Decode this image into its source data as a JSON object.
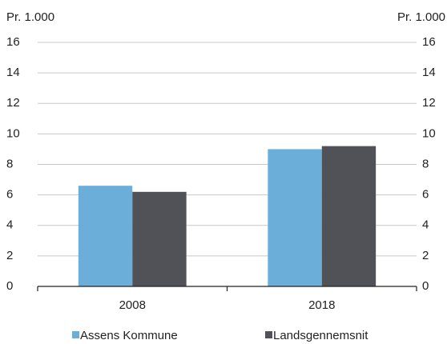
{
  "chart_data": {
    "type": "bar",
    "ylabel": "Pr. 1.000",
    "y2label": "Pr. 1.000",
    "categories": [
      "2008",
      "2018"
    ],
    "series": [
      {
        "name": "Assens Kommune",
        "color": "#6aaed9",
        "values": [
          6.6,
          9.0
        ]
      },
      {
        "name": "Landsgennemsnit",
        "color": "#505257",
        "values": [
          6.2,
          9.2
        ]
      }
    ],
    "ylim": [
      0,
      16
    ],
    "yticks": [
      0,
      2,
      4,
      6,
      8,
      10,
      12,
      14,
      16
    ],
    "y2lim": [
      0,
      16
    ],
    "y2ticks": [
      0,
      2,
      4,
      6,
      8,
      10,
      12,
      14,
      16
    ],
    "grid": true,
    "legend": "bottom"
  }
}
